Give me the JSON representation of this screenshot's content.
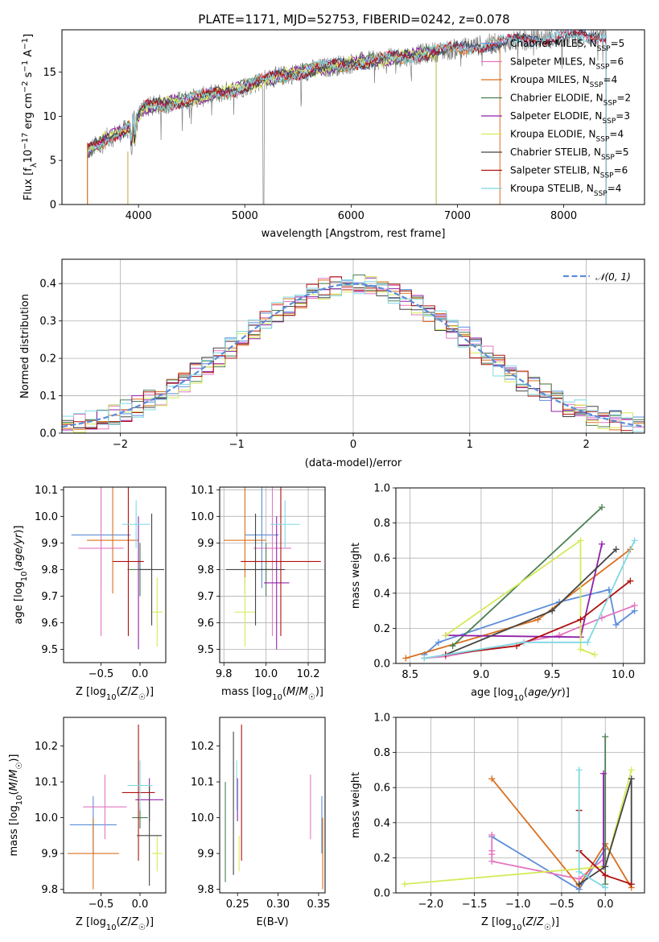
{
  "figure_title": "PLATE=1171, MJD=52753, FIBERID=0242, z=0.078",
  "colors": {
    "Chabrier MILES": "#5b8dd9",
    "Salpeter MILES": "#e377c2",
    "Kroupa MILES": "#d9701e",
    "Chabrier ELODIE": "#4a7f52",
    "Salpeter ELODIE": "#9020a8",
    "Kroupa ELODIE": "#d6ea5a",
    "Chabrier STELIB": "#444444",
    "Salpeter STELIB": "#b01010",
    "Kroupa STELIB": "#7fd8e2",
    "data": "#808080"
  },
  "chart_data": [
    {
      "id": "spectrum",
      "type": "line",
      "title": "PLATE=1171, MJD=52753, FIBERID=0242, z=0.078",
      "xlabel": "wavelength [Angstrom, rest frame]",
      "ylabel": "Flux [f_λ10^-17 erg cm^-2 s^-1 A^-1]",
      "xlim": [
        3280,
        8760
      ],
      "ylim": [
        0,
        19.8
      ],
      "xticks": [
        "4000",
        "5000",
        "6000",
        "7000",
        "8000"
      ],
      "yticks": [
        "0",
        "5",
        "10",
        "15"
      ],
      "grid": false,
      "legend_position": "right",
      "continuum_knots": [
        [
          3520,
          6.0
        ],
        [
          3700,
          7.5
        ],
        [
          3900,
          8.6
        ],
        [
          4050,
          11.0
        ],
        [
          4300,
          11.5
        ],
        [
          4600,
          12.2
        ],
        [
          4900,
          13.0
        ],
        [
          5200,
          14.2
        ],
        [
          5600,
          15.2
        ],
        [
          6000,
          16.0
        ],
        [
          6400,
          16.6
        ],
        [
          6800,
          17.3
        ],
        [
          7300,
          18.2
        ],
        [
          7800,
          18.8
        ],
        [
          8400,
          19.2
        ]
      ],
      "series": [
        {
          "name": "Chabrier MILES",
          "n_ssp": "5",
          "x_range": [
            3520,
            8400
          ]
        },
        {
          "name": "Salpeter MILES",
          "n_ssp": "6",
          "x_range": [
            3520,
            8400
          ]
        },
        {
          "name": "Kroupa MILES",
          "n_ssp": "4",
          "x_range": [
            3520,
            7400
          ]
        },
        {
          "name": "Chabrier ELODIE",
          "n_ssp": "2",
          "x_range": [
            3520,
            6800
          ]
        },
        {
          "name": "Salpeter ELODIE",
          "n_ssp": "3",
          "x_range": [
            3520,
            6800
          ]
        },
        {
          "name": "Kroupa ELODIE",
          "n_ssp": "4",
          "x_range": [
            3520,
            6800
          ]
        },
        {
          "name": "Chabrier STELIB",
          "n_ssp": "5",
          "x_range": [
            3520,
            8400
          ]
        },
        {
          "name": "Salpeter STELIB",
          "n_ssp": "6",
          "x_range": [
            3520,
            8400
          ]
        },
        {
          "name": "Kroupa STELIB",
          "n_ssp": "4",
          "x_range": [
            3520,
            8400
          ]
        }
      ]
    },
    {
      "id": "residuals",
      "type": "line",
      "xlabel": "(data-model)/error",
      "ylabel": "Normed distribution",
      "xlim": [
        -2.5,
        2.5
      ],
      "ylim": [
        0,
        0.465
      ],
      "xticks": [
        "−2",
        "−1",
        "0",
        "1",
        "2"
      ],
      "yticks": [
        "0.0",
        "0.1",
        "0.2",
        "0.3",
        "0.4"
      ],
      "grid": true,
      "bin_width": 0.1,
      "legend_position": "top-right",
      "reference_curve": {
        "name": "𝒩(0, 1)",
        "mean": 0,
        "sigma": 1
      }
    },
    {
      "id": "age_vs_Z",
      "type": "errorbar",
      "xlabel": "Z [log10(Z/Z☉)]",
      "ylabel": "age [log10(age/yr)]",
      "xlim": [
        -0.98,
        0.33
      ],
      "ylim": [
        9.45,
        10.11
      ],
      "xticks": [
        "−0.5",
        "0.0"
      ],
      "yticks": [
        "9.5",
        "9.6",
        "9.7",
        "9.8",
        "9.9",
        "10.0",
        "10.1"
      ],
      "grid": false,
      "points": [
        {
          "name": "Chabrier MILES",
          "x": -0.5,
          "xerr": 0.38,
          "y": 9.93,
          "yerr": 0.2
        },
        {
          "name": "Salpeter MILES",
          "x": -0.5,
          "xerr": 0.29,
          "y": 9.88,
          "yerr": 0.33
        },
        {
          "name": "Kroupa MILES",
          "x": -0.35,
          "xerr": 0.33,
          "y": 9.91,
          "yerr": 0.2
        },
        {
          "name": "Chabrier ELODIE",
          "x": 0.0,
          "xerr": 0.16,
          "y": 9.8,
          "yerr": 0.1
        },
        {
          "name": "Salpeter ELODIE",
          "x": -0.02,
          "xerr": 0.0,
          "y": 9.75,
          "yerr": 0.25
        },
        {
          "name": "Kroupa ELODIE",
          "x": 0.22,
          "xerr": 0.07,
          "y": 9.64,
          "yerr": 0.13
        },
        {
          "name": "Chabrier STELIB",
          "x": 0.15,
          "xerr": 0.16,
          "y": 9.8,
          "yerr": 0.21
        },
        {
          "name": "Salpeter STELIB",
          "x": -0.15,
          "xerr": 0.2,
          "y": 9.83,
          "yerr": 0.28
        },
        {
          "name": "Kroupa STELIB",
          "x": -0.05,
          "xerr": 0.18,
          "y": 9.97,
          "yerr": 0.09
        }
      ]
    },
    {
      "id": "age_vs_mass",
      "type": "errorbar",
      "xlabel": "mass [log10(M/M☉)]",
      "ylabel": "",
      "xlim": [
        9.78,
        10.28
      ],
      "ylim": [
        9.45,
        10.11
      ],
      "xticks": [
        "9.8",
        "10.0",
        "10.2"
      ],
      "yticks": [
        "9.5",
        "9.6",
        "9.7",
        "9.8",
        "9.9",
        "10.0",
        "10.1"
      ],
      "grid": true,
      "points": [
        {
          "name": "Chabrier MILES",
          "x": 9.98,
          "xerr": 0.08,
          "y": 9.93,
          "yerr": 0.2
        },
        {
          "name": "Salpeter MILES",
          "x": 10.03,
          "xerr": 0.09,
          "y": 9.88,
          "yerr": 0.33
        },
        {
          "name": "Kroupa MILES",
          "x": 9.9,
          "xerr": 0.1,
          "y": 9.91,
          "yerr": 0.2
        },
        {
          "name": "Chabrier ELODIE",
          "x": 10.0,
          "xerr": 0.03,
          "y": 9.8,
          "yerr": 0.1
        },
        {
          "name": "Salpeter ELODIE",
          "x": 10.05,
          "xerr": 0.06,
          "y": 9.75,
          "yerr": 0.25
        },
        {
          "name": "Kroupa ELODIE",
          "x": 9.9,
          "xerr": 0.05,
          "y": 9.64,
          "yerr": 0.13
        },
        {
          "name": "Chabrier STELIB",
          "x": 9.95,
          "xerr": 0.14,
          "y": 9.8,
          "yerr": 0.21
        },
        {
          "name": "Salpeter STELIB",
          "x": 10.07,
          "xerr": 0.19,
          "y": 9.83,
          "yerr": 0.28
        },
        {
          "name": "Kroupa STELIB",
          "x": 10.09,
          "xerr": 0.07,
          "y": 9.97,
          "yerr": 0.09
        }
      ]
    },
    {
      "id": "weight_vs_age",
      "type": "line",
      "xlabel": "age [log10(age/yr)]",
      "ylabel": "mass weight",
      "xlim": [
        8.4,
        10.15
      ],
      "ylim": [
        0,
        1.0
      ],
      "xticks": [
        "8.5",
        "9.0",
        "9.5",
        "10.0"
      ],
      "yticks": [
        "0.0",
        "0.2",
        "0.4",
        "0.6",
        "0.8",
        "1.0"
      ],
      "grid": true,
      "series": [
        {
          "name": "Chabrier MILES",
          "x": [
            8.6,
            8.7,
            9.55,
            9.9,
            9.95,
            10.08
          ],
          "y": [
            0.05,
            0.12,
            0.35,
            0.42,
            0.22,
            0.3
          ]
        },
        {
          "name": "Salpeter MILES",
          "x": [
            8.6,
            8.75,
            9.55,
            9.85,
            10.08
          ],
          "y": [
            0.03,
            0.04,
            0.16,
            0.26,
            0.33
          ]
        },
        {
          "name": "Kroupa MILES",
          "x": [
            8.47,
            9.4,
            10.05
          ],
          "y": [
            0.03,
            0.25,
            0.65
          ]
        },
        {
          "name": "Chabrier ELODIE",
          "x": [
            8.8,
            9.85
          ],
          "y": [
            0.1,
            0.89
          ]
        },
        {
          "name": "Salpeter ELODIE",
          "x": [
            8.75,
            9.7,
            9.85
          ],
          "y": [
            0.16,
            0.15,
            0.68
          ]
        },
        {
          "name": "Kroupa ELODIE",
          "x": [
            8.75,
            9.7,
            9.7,
            9.8
          ],
          "y": [
            0.16,
            0.7,
            0.08,
            0.05
          ]
        },
        {
          "name": "Chabrier STELIB",
          "x": [
            8.75,
            9.5,
            9.95
          ],
          "y": [
            0.05,
            0.3,
            0.65
          ]
        },
        {
          "name": "Salpeter STELIB",
          "x": [
            8.75,
            9.25,
            9.7,
            10.05
          ],
          "y": [
            0.05,
            0.1,
            0.25,
            0.47
          ]
        },
        {
          "name": "Kroupa STELIB",
          "x": [
            8.6,
            9.3,
            9.75,
            10.08
          ],
          "y": [
            0.03,
            0.12,
            0.12,
            0.7
          ]
        }
      ]
    },
    {
      "id": "mass_vs_Z",
      "type": "errorbar",
      "xlabel": "Z [log10(Z/Z☉)]",
      "ylabel": "mass [log10(M/M☉)]",
      "xlim": [
        -0.98,
        0.33
      ],
      "ylim": [
        9.79,
        10.28
      ],
      "xticks": [
        "−0.5",
        "0.0"
      ],
      "yticks": [
        "9.8",
        "9.9",
        "10.0",
        "10.1",
        "10.2"
      ],
      "grid": false,
      "points": [
        {
          "name": "Chabrier MILES",
          "x": -0.6,
          "xerr": 0.3,
          "y": 9.98,
          "yerr": 0.08
        },
        {
          "name": "Salpeter MILES",
          "x": -0.45,
          "xerr": 0.28,
          "y": 10.03,
          "yerr": 0.09
        },
        {
          "name": "Kroupa MILES",
          "x": -0.6,
          "xerr": 0.33,
          "y": 9.9,
          "yerr": 0.1
        },
        {
          "name": "Chabrier ELODIE",
          "x": 0.0,
          "xerr": 0.1,
          "y": 10.0,
          "yerr": 0.03
        },
        {
          "name": "Salpeter ELODIE",
          "x": 0.12,
          "xerr": 0.18,
          "y": 10.05,
          "yerr": 0.06
        },
        {
          "name": "Kroupa ELODIE",
          "x": 0.22,
          "xerr": 0.07,
          "y": 9.9,
          "yerr": 0.05
        },
        {
          "name": "Chabrier STELIB",
          "x": 0.12,
          "xerr": 0.16,
          "y": 9.95,
          "yerr": 0.14
        },
        {
          "name": "Salpeter STELIB",
          "x": -0.02,
          "xerr": 0.21,
          "y": 10.07,
          "yerr": 0.19
        },
        {
          "name": "Kroupa STELIB",
          "x": 0.0,
          "xerr": 0.16,
          "y": 10.09,
          "yerr": 0.07
        }
      ]
    },
    {
      "id": "mass_vs_ebv",
      "type": "errorbar",
      "xlabel": "E(B-V)",
      "ylabel": "",
      "xlim": [
        0.228,
        0.358
      ],
      "ylim": [
        9.79,
        10.28
      ],
      "xticks": [
        "0.25",
        "0.30",
        "0.35"
      ],
      "yticks": [
        "9.8",
        "9.9",
        "10.0",
        "10.1",
        "10.2"
      ],
      "grid": false,
      "points": [
        {
          "name": "Chabrier MILES",
          "x": 0.354,
          "xerr": 0.0,
          "y": 9.98,
          "yerr": 0.08
        },
        {
          "name": "Salpeter MILES",
          "x": 0.34,
          "xerr": 0.0,
          "y": 10.03,
          "yerr": 0.09
        },
        {
          "name": "Kroupa MILES",
          "x": 0.355,
          "xerr": 0.0,
          "y": 9.9,
          "yerr": 0.1
        },
        {
          "name": "Chabrier ELODIE",
          "x": 0.235,
          "xerr": 0.0,
          "y": 9.96,
          "yerr": 0.14
        },
        {
          "name": "Salpeter ELODIE",
          "x": 0.25,
          "xerr": 0.0,
          "y": 10.05,
          "yerr": 0.06
        },
        {
          "name": "Kroupa ELODIE",
          "x": 0.252,
          "xerr": 0.0,
          "y": 9.9,
          "yerr": 0.05
        },
        {
          "name": "Chabrier STELIB",
          "x": 0.245,
          "xerr": 0.0,
          "y": 10.04,
          "yerr": 0.2
        },
        {
          "name": "Salpeter STELIB",
          "x": 0.255,
          "xerr": 0.0,
          "y": 10.07,
          "yerr": 0.19
        },
        {
          "name": "Kroupa STELIB",
          "x": 0.249,
          "xerr": 0.0,
          "y": 10.09,
          "yerr": 0.07
        }
      ]
    },
    {
      "id": "weight_vs_Z",
      "type": "line",
      "xlabel": "Z [log10(Z/Z☉)]",
      "ylabel": "mass weight",
      "xlim": [
        -2.4,
        0.45
      ],
      "ylim": [
        0,
        1.0
      ],
      "xticks": [
        "−2.0",
        "−1.5",
        "−1.0",
        "−0.5",
        "0.0"
      ],
      "yticks": [
        "0.0",
        "0.2",
        "0.4",
        "0.6",
        "0.8",
        "1.0"
      ],
      "grid": true,
      "series": [
        {
          "name": "Chabrier MILES",
          "x": [
            -1.3,
            -0.3,
            0.0
          ],
          "y": [
            0.32,
            0.02,
            0.25
          ]
        },
        {
          "name": "Salpeter MILES",
          "x": [
            -1.3,
            -1.3,
            -1.3,
            -1.3,
            -0.3,
            0.0
          ],
          "y": [
            0.33,
            0.24,
            0.22,
            0.18,
            0.08,
            0.2
          ]
        },
        {
          "name": "Kroupa MILES",
          "x": [
            -1.3,
            -0.3,
            0.0,
            0.3
          ],
          "y": [
            0.65,
            0.04,
            0.28,
            0.03
          ]
        },
        {
          "name": "Chabrier ELODIE",
          "x": [
            0.0,
            0.0
          ],
          "y": [
            0.89,
            0.05
          ]
        },
        {
          "name": "Salpeter ELODIE",
          "x": [
            -0.02,
            -0.02
          ],
          "y": [
            0.68,
            0.15
          ]
        },
        {
          "name": "Kroupa ELODIE",
          "x": [
            -2.3,
            0.0,
            0.3
          ],
          "y": [
            0.05,
            0.15,
            0.7
          ]
        },
        {
          "name": "Chabrier STELIB",
          "x": [
            -0.3,
            0.0,
            0.3,
            0.3
          ],
          "y": [
            0.05,
            0.15,
            0.65,
            0.05
          ]
        },
        {
          "name": "Salpeter STELIB",
          "x": [
            -0.3,
            -0.3,
            0.0,
            0.3
          ],
          "y": [
            0.47,
            0.24,
            0.1,
            0.05
          ]
        },
        {
          "name": "Kroupa STELIB",
          "x": [
            -0.3,
            -0.3,
            0.0
          ],
          "y": [
            0.7,
            0.12,
            0.03
          ]
        }
      ]
    }
  ]
}
